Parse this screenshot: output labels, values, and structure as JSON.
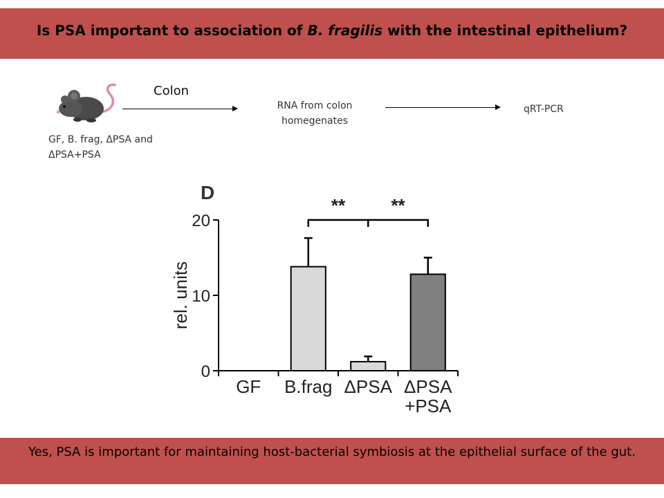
{
  "header": {
    "title_pre": "Is PSA important to association of ",
    "title_em": "B. fragilis",
    "title_post": " with the intestinal epithelium?"
  },
  "flow": {
    "step1_label": "Colon",
    "step2_label_line1": "RNA from colon",
    "step2_label_line2": "homegenates",
    "step3_label": "qRT-PCR",
    "mouse_caption_line1": "GF, B. frag, ΔPSA and",
    "mouse_caption_line2": "ΔPSA+PSA",
    "mouse_icon": "mouse-icon"
  },
  "chart_data": {
    "type": "bar",
    "panel_label": "D",
    "ylabel": "rel. units",
    "ylim": [
      0,
      20
    ],
    "yticks": [
      0,
      10,
      20
    ],
    "categories": [
      "GF",
      "B.frag",
      "ΔPSA",
      "ΔPSA\n+PSA"
    ],
    "category_lines": [
      [
        "GF"
      ],
      [
        "B.frag"
      ],
      [
        "ΔPSA"
      ],
      [
        "ΔPSA",
        "+PSA"
      ]
    ],
    "values": [
      0,
      13.8,
      1.2,
      12.8
    ],
    "errors": [
      0,
      3.8,
      0.7,
      2.2
    ],
    "bar_colors": [
      "#d9d9d9",
      "#d9d9d9",
      "#d9d9d9",
      "#808080"
    ],
    "significance": [
      {
        "from": 1,
        "to": 2,
        "label": "**"
      },
      {
        "from": 2,
        "to": 3,
        "label": "**"
      }
    ],
    "grid": false
  },
  "footer": {
    "conclusion": "Yes, PSA is important for maintaining host-bacterial symbiosis at the epithelial surface of the gut."
  }
}
